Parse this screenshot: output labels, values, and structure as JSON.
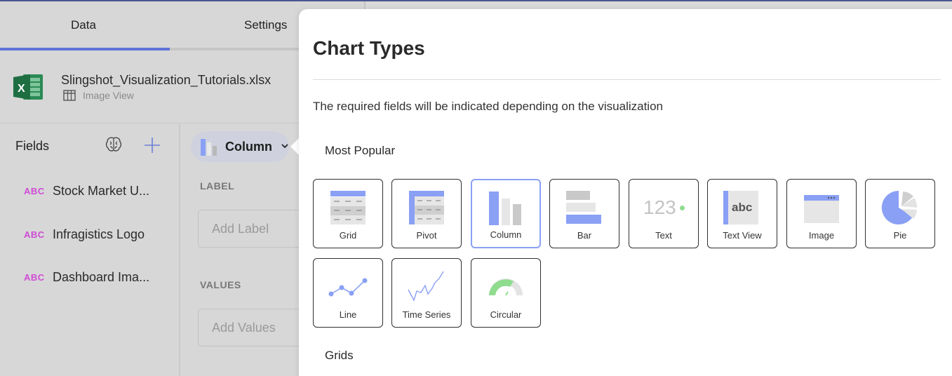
{
  "tabs": {
    "data": "Data",
    "settings": "Settings"
  },
  "source": {
    "filename": "Slingshot_Visualization_Tutorials.xlsx",
    "view": "Image View"
  },
  "fields": {
    "title": "Fields",
    "items": [
      {
        "type": "ABC",
        "name": "Stock Market U..."
      },
      {
        "type": "ABC",
        "name": "Infragistics Logo"
      },
      {
        "type": "ABC",
        "name": "Dashboard Ima..."
      }
    ]
  },
  "editor": {
    "chart_type": "Column",
    "label_section": "LABEL",
    "label_placeholder": "Add Label",
    "values_section": "VALUES",
    "values_placeholder": "Add Values"
  },
  "chart_types": {
    "title": "Chart Types",
    "description": "The required fields will be indicated depending on the visualization",
    "most_popular_title": "Most Popular",
    "grids_title": "Grids",
    "tiles": [
      "Grid",
      "Pivot",
      "Column",
      "Bar",
      "Text",
      "Text View",
      "Image",
      "Pie",
      "Line",
      "Time Series",
      "Circular"
    ],
    "text_tile_glyph": "123",
    "text_view_tile_glyph": "abc",
    "selected": "Column"
  },
  "colors": {
    "accent": "#5f73d9",
    "tile_blue": "#8aa0f5",
    "abc_magenta": "#d04ad6",
    "excel_green": "#1e6e42"
  }
}
